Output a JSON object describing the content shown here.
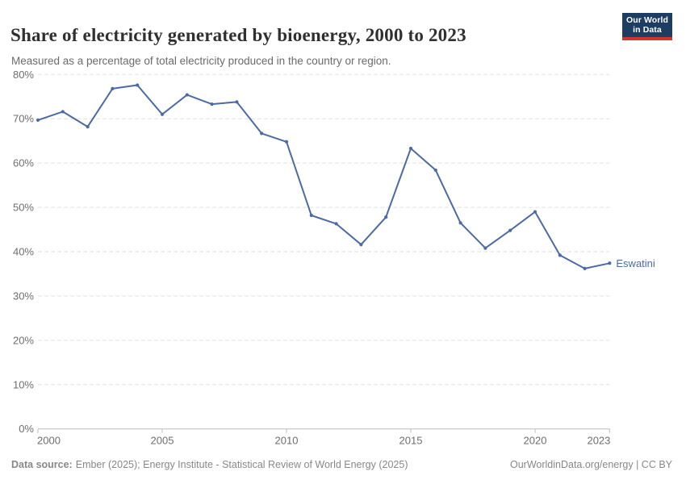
{
  "header": {
    "title": "Share of electricity generated by bioenergy, 2000 to 2023",
    "subtitle": "Measured as a percentage of total electricity produced in the country or region.",
    "logo": {
      "line1": "Our World",
      "line2": "in Data",
      "bg_color": "#1d3d63",
      "accent_color": "#d4352c"
    }
  },
  "chart_data": {
    "type": "line",
    "title": "Share of electricity generated by bioenergy, 2000 to 2023",
    "xlabel": "",
    "ylabel": "",
    "xlim": [
      2000,
      2023
    ],
    "ylim": [
      0,
      80
    ],
    "grid": "horizontal-dashed",
    "legend_position": "end-of-line-label",
    "y_ticks": [
      0,
      10,
      20,
      30,
      40,
      50,
      60,
      70,
      80
    ],
    "y_tick_suffix": "%",
    "x_ticks": [
      2000,
      2005,
      2010,
      2015,
      2020,
      2023
    ],
    "x": [
      2000,
      2001,
      2002,
      2003,
      2004,
      2005,
      2006,
      2007,
      2008,
      2009,
      2010,
      2011,
      2012,
      2013,
      2014,
      2015,
      2016,
      2017,
      2018,
      2019,
      2020,
      2021,
      2022,
      2023
    ],
    "series": [
      {
        "name": "Eswatini",
        "color": "#4c6ba5",
        "values": [
          69.7,
          71.6,
          68.2,
          76.8,
          77.6,
          71.0,
          75.4,
          73.3,
          73.8,
          66.7,
          64.8,
          48.2,
          46.3,
          41.6,
          47.8,
          63.3,
          58.4,
          46.5,
          40.8,
          44.8,
          49.0,
          39.2,
          36.2,
          37.4
        ]
      }
    ]
  },
  "footer": {
    "datasource_label": "Data source:",
    "datasource_text": "Ember (2025); Energy Institute - Statistical Review of World Energy (2025)",
    "credit": "OurWorldinData.org/energy | CC BY"
  }
}
